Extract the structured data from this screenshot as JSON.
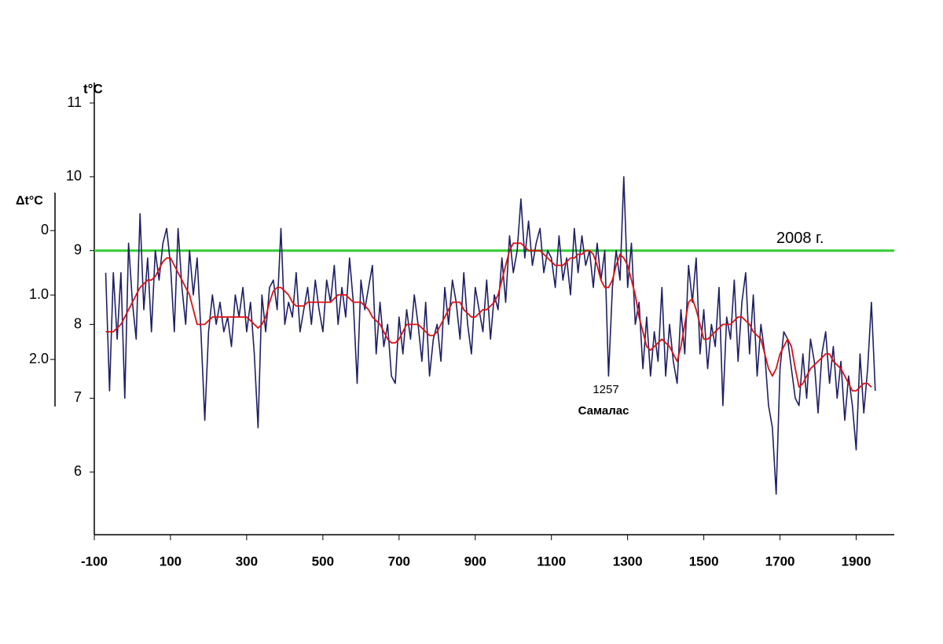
{
  "chart_data": {
    "type": "line",
    "y_label": "t°C",
    "y2_label": "Δt°C",
    "x": [
      -70,
      -60,
      -50,
      -40,
      -30,
      -20,
      -10,
      0,
      10,
      20,
      30,
      40,
      50,
      60,
      70,
      80,
      90,
      100,
      110,
      120,
      130,
      140,
      150,
      160,
      170,
      180,
      190,
      200,
      210,
      220,
      230,
      240,
      250,
      260,
      270,
      280,
      290,
      300,
      310,
      320,
      330,
      340,
      350,
      360,
      370,
      380,
      390,
      400,
      410,
      420,
      430,
      440,
      450,
      460,
      470,
      480,
      490,
      500,
      510,
      520,
      530,
      540,
      550,
      560,
      570,
      580,
      590,
      600,
      610,
      620,
      630,
      640,
      650,
      660,
      670,
      680,
      690,
      700,
      710,
      720,
      730,
      740,
      750,
      760,
      770,
      780,
      790,
      800,
      810,
      820,
      830,
      840,
      850,
      860,
      870,
      880,
      890,
      900,
      910,
      920,
      930,
      940,
      950,
      960,
      970,
      980,
      990,
      1000,
      1010,
      1020,
      1030,
      1040,
      1050,
      1060,
      1070,
      1080,
      1090,
      1100,
      1110,
      1120,
      1130,
      1140,
      1150,
      1160,
      1170,
      1180,
      1190,
      1200,
      1210,
      1220,
      1230,
      1240,
      1250,
      1260,
      1270,
      1280,
      1290,
      1300,
      1310,
      1320,
      1330,
      1340,
      1350,
      1360,
      1370,
      1380,
      1390,
      1400,
      1410,
      1420,
      1430,
      1440,
      1450,
      1460,
      1470,
      1480,
      1490,
      1500,
      1510,
      1520,
      1530,
      1540,
      1550,
      1560,
      1570,
      1580,
      1590,
      1600,
      1610,
      1620,
      1630,
      1640,
      1650,
      1660,
      1670,
      1680,
      1690,
      1700,
      1710,
      1720,
      1730,
      1740,
      1750,
      1760,
      1770,
      1780,
      1790,
      1800,
      1810,
      1820,
      1830,
      1840,
      1850,
      1860,
      1870,
      1880,
      1890,
      1900,
      1910,
      1920,
      1930,
      1940,
      1950
    ],
    "series": [
      {
        "color": "#1f1f66",
        "values": [
          8.7,
          7.1,
          8.7,
          7.8,
          8.7,
          7.0,
          9.1,
          8.3,
          7.8,
          9.5,
          8.2,
          8.9,
          7.9,
          9.0,
          8.6,
          9.1,
          9.3,
          8.8,
          7.9,
          9.3,
          8.5,
          8.0,
          9.0,
          8.4,
          8.9,
          7.9,
          6.7,
          7.9,
          8.4,
          8.0,
          8.3,
          7.9,
          8.1,
          7.7,
          8.4,
          8.1,
          8.5,
          7.9,
          8.3,
          7.6,
          6.6,
          8.4,
          7.9,
          8.5,
          8.6,
          8.2,
          9.3,
          8.0,
          8.3,
          8.1,
          8.7,
          7.9,
          8.2,
          8.5,
          8.0,
          8.6,
          8.2,
          7.9,
          8.6,
          8.3,
          8.8,
          8.0,
          8.5,
          8.1,
          8.9,
          8.3,
          7.2,
          8.6,
          8.2,
          8.5,
          8.8,
          7.6,
          8.3,
          7.7,
          8.0,
          7.3,
          7.2,
          8.1,
          7.6,
          8.2,
          7.8,
          8.4,
          8.0,
          7.5,
          8.3,
          7.3,
          7.8,
          8.0,
          7.5,
          8.5,
          8.0,
          8.6,
          8.3,
          7.8,
          8.7,
          8.0,
          7.6,
          8.5,
          8.2,
          7.9,
          8.6,
          7.8,
          8.4,
          8.2,
          8.9,
          8.3,
          9.2,
          8.7,
          9.0,
          9.7,
          8.9,
          9.4,
          8.8,
          9.1,
          9.3,
          8.7,
          9.0,
          8.9,
          8.5,
          9.2,
          8.6,
          8.9,
          8.4,
          9.3,
          8.7,
          9.2,
          8.8,
          9.0,
          8.5,
          9.1,
          8.6,
          9.0,
          7.3,
          8.5,
          9.0,
          8.6,
          10.0,
          8.5,
          9.1,
          8.0,
          8.3,
          7.4,
          8.1,
          7.3,
          7.9,
          7.5,
          8.5,
          7.3,
          8.0,
          7.5,
          7.2,
          8.2,
          7.6,
          8.8,
          8.3,
          8.9,
          7.6,
          8.2,
          7.4,
          8.0,
          7.7,
          8.5,
          6.9,
          8.1,
          7.8,
          8.6,
          7.5,
          8.3,
          8.7,
          7.6,
          8.4,
          7.3,
          8.0,
          7.6,
          6.9,
          6.6,
          5.7,
          7.4,
          7.9,
          7.8,
          7.4,
          7.0,
          6.9,
          7.6,
          7.0,
          7.8,
          7.5,
          6.8,
          7.6,
          7.9,
          7.2,
          7.7,
          7.0,
          7.5,
          6.7,
          7.3,
          6.9,
          6.3,
          7.6,
          6.8,
          7.4,
          8.3,
          7.1
        ]
      },
      {
        "color": "#dd1111",
        "values": [
          7.9,
          7.9,
          7.9,
          7.95,
          8.0,
          8.1,
          8.2,
          8.3,
          8.4,
          8.5,
          8.55,
          8.6,
          8.6,
          8.65,
          8.75,
          8.85,
          8.9,
          8.9,
          8.8,
          8.7,
          8.6,
          8.5,
          8.4,
          8.2,
          8.0,
          8.0,
          8.0,
          8.05,
          8.1,
          8.1,
          8.1,
          8.1,
          8.1,
          8.1,
          8.1,
          8.1,
          8.1,
          8.1,
          8.05,
          8.0,
          7.95,
          8.0,
          8.1,
          8.3,
          8.45,
          8.5,
          8.5,
          8.45,
          8.4,
          8.3,
          8.25,
          8.25,
          8.25,
          8.3,
          8.3,
          8.3,
          8.3,
          8.3,
          8.3,
          8.3,
          8.35,
          8.4,
          8.4,
          8.4,
          8.35,
          8.3,
          8.3,
          8.3,
          8.25,
          8.2,
          8.1,
          8.05,
          8.0,
          7.9,
          7.8,
          7.75,
          7.75,
          7.8,
          7.9,
          8.0,
          8.0,
          8.0,
          8.0,
          7.95,
          7.9,
          7.85,
          7.85,
          7.9,
          8.0,
          8.1,
          8.2,
          8.3,
          8.3,
          8.3,
          8.2,
          8.15,
          8.1,
          8.1,
          8.15,
          8.2,
          8.2,
          8.25,
          8.3,
          8.4,
          8.6,
          8.8,
          9.0,
          9.1,
          9.1,
          9.1,
          9.05,
          9.0,
          9.0,
          9.0,
          9.0,
          8.95,
          8.9,
          8.85,
          8.8,
          8.8,
          8.8,
          8.85,
          8.9,
          8.9,
          8.95,
          8.95,
          9.0,
          9.0,
          8.95,
          8.8,
          8.6,
          8.5,
          8.5,
          8.6,
          8.8,
          8.95,
          8.9,
          8.8,
          8.6,
          8.4,
          8.1,
          7.9,
          7.7,
          7.65,
          7.7,
          7.75,
          7.8,
          7.75,
          7.7,
          7.6,
          7.5,
          7.7,
          8.0,
          8.3,
          8.35,
          8.2,
          8.0,
          7.8,
          7.8,
          7.85,
          7.9,
          7.95,
          8.0,
          8.0,
          8.0,
          8.05,
          8.1,
          8.1,
          8.05,
          8.0,
          7.9,
          7.85,
          7.8,
          7.6,
          7.4,
          7.3,
          7.4,
          7.6,
          7.7,
          7.8,
          7.7,
          7.4,
          7.15,
          7.2,
          7.3,
          7.4,
          7.45,
          7.5,
          7.55,
          7.6,
          7.6,
          7.5,
          7.45,
          7.4,
          7.3,
          7.2,
          7.1,
          7.1,
          7.15,
          7.2,
          7.2,
          7.15,
          null
        ]
      }
    ],
    "xlim": [
      -100,
      2000
    ],
    "xticks": [
      -100,
      100,
      300,
      500,
      700,
      900,
      1100,
      1300,
      1500,
      1700,
      1900
    ],
    "ylim": [
      5.15,
      11
    ],
    "yticks": [
      6,
      7,
      8,
      9,
      10,
      11
    ],
    "y2lim": [
      4.72,
      -1.98
    ],
    "y2ticks": [
      0,
      {
        "value": 1,
        "label": "1.0"
      },
      {
        "value": 2,
        "label": "2.0"
      }
    ],
    "reference_line": {
      "value": 9,
      "label": "2008 г.",
      "color": "#33cc33"
    },
    "annotations": [
      {
        "text": "1257"
      },
      {
        "text": "Самалас"
      }
    ]
  }
}
